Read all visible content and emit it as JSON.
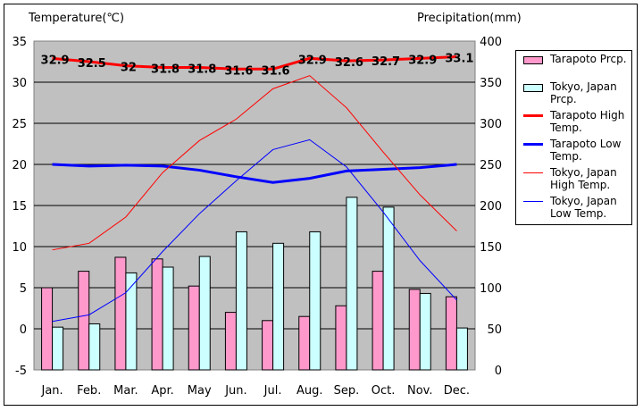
{
  "chart_data": {
    "type": "bar+line",
    "categories": [
      "Jan.",
      "Feb.",
      "Mar.",
      "Apr.",
      "May",
      "Jun.",
      "Jul.",
      "Aug.",
      "Sep.",
      "Oct.",
      "Nov.",
      "Dec."
    ],
    "left_axis": {
      "label": "Temperature(℃)",
      "range": [
        -5,
        35
      ],
      "ticks": [
        35,
        30,
        25,
        20,
        15,
        10,
        5,
        0,
        -5
      ]
    },
    "right_axis": {
      "label": "Precipitation(mm)",
      "range": [
        0,
        400
      ],
      "ticks": [
        400,
        350,
        300,
        250,
        200,
        150,
        100,
        50,
        0
      ]
    },
    "grid": true,
    "legend_position": "right",
    "series": [
      {
        "key": "tarapoto_prcp",
        "name": "Tarapoto Prcp.",
        "kind": "bar",
        "axis": "right",
        "color": "#ff99cc",
        "values": [
          100,
          120,
          137,
          135,
          102,
          70,
          60,
          65,
          78,
          120,
          98,
          89
        ]
      },
      {
        "key": "tokyo_prcp",
        "name": "Tokyo, Japan Prcp.",
        "kind": "bar",
        "axis": "right",
        "color": "#ccffff",
        "values": [
          52,
          56,
          118,
          125,
          138,
          168,
          154,
          168,
          210,
          198,
          93,
          51
        ]
      },
      {
        "key": "tarapoto_high",
        "name": "Tarapoto High Temp.",
        "kind": "line",
        "axis": "left",
        "color": "#ff0000",
        "width": "thick",
        "values": [
          32.9,
          32.5,
          32,
          31.8,
          31.8,
          31.6,
          31.6,
          32.9,
          32.6,
          32.7,
          32.9,
          33.1
        ],
        "value_labels": [
          "32.9",
          "32.5",
          "32",
          "31.8",
          "31.8",
          "31.6",
          "31.6",
          "32.9",
          "32.6",
          "32.7",
          "32.9",
          "33.1"
        ]
      },
      {
        "key": "tarapoto_low",
        "name": "Tarapoto Low Temp.",
        "kind": "line",
        "axis": "left",
        "color": "#0000ff",
        "width": "thick",
        "values": [
          20,
          19.8,
          19.9,
          19.8,
          19.3,
          18.5,
          17.8,
          18.3,
          19.2,
          19.4,
          19.6,
          20
        ]
      },
      {
        "key": "tokyo_high",
        "name": "Tokyo, Japan High Temp.",
        "kind": "line",
        "axis": "left",
        "color": "#ff0000",
        "width": "thin",
        "values": [
          9.6,
          10.4,
          13.6,
          19.0,
          22.9,
          25.5,
          29.2,
          30.8,
          26.9,
          21.5,
          16.3,
          11.9
        ]
      },
      {
        "key": "tokyo_low",
        "name": "Tokyo, Japan Low Temp.",
        "kind": "line",
        "axis": "left",
        "color": "#0000ff",
        "width": "thin",
        "values": [
          0.9,
          1.7,
          4.4,
          9.4,
          14.0,
          18.0,
          21.8,
          23.0,
          19.7,
          14.2,
          8.3,
          3.5
        ]
      }
    ]
  }
}
